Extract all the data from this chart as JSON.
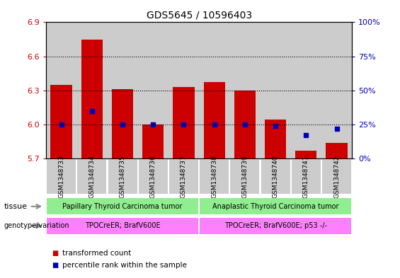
{
  "title": "GDS5645 / 10596403",
  "samples": [
    "GSM1348733",
    "GSM1348734",
    "GSM1348735",
    "GSM1348736",
    "GSM1348737",
    "GSM1348738",
    "GSM1348739",
    "GSM1348740",
    "GSM1348741",
    "GSM1348742"
  ],
  "transformed_count": [
    6.35,
    6.75,
    6.31,
    6.0,
    6.33,
    6.37,
    6.3,
    6.04,
    5.77,
    5.84
  ],
  "percentile_rank": [
    25,
    35,
    25,
    25,
    25,
    25,
    25,
    24,
    17,
    22
  ],
  "ylim_min": 5.7,
  "ylim_max": 6.9,
  "yticks": [
    5.7,
    6.0,
    6.3,
    6.6,
    6.9
  ],
  "y2ticks": [
    0,
    25,
    50,
    75,
    100
  ],
  "tissue_label1": "Papillary Thyroid Carcinoma tumor",
  "tissue_label2": "Anaplastic Thyroid Carcinoma tumor",
  "tissue_color": "#90EE90",
  "genotype_label1": "TPOCreER; BrafV600E",
  "genotype_label2": "TPOCreER; BrafV600E; p53 -/-",
  "genotype_color": "#FF80FF",
  "bar_color": "#CC0000",
  "dot_color": "#0000BB",
  "bg_color": "#CCCCCC",
  "plot_bg": "#FFFFFF",
  "legend_bar_label": "transformed count",
  "legend_dot_label": "percentile rank within the sample",
  "tissue_row_label": "tissue",
  "geno_row_label": "genotype/variation"
}
